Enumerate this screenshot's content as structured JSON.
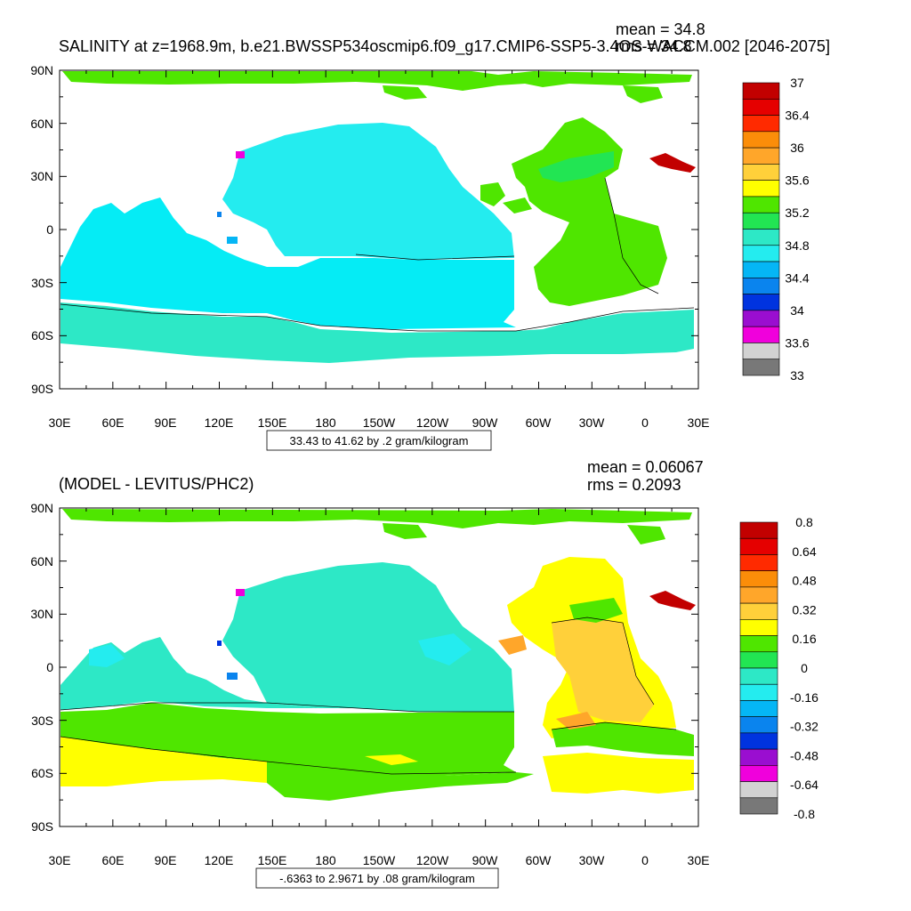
{
  "colors": {
    "land": "#ffffff",
    "frame": "#000000"
  },
  "icons": [
    "contour-line",
    "colorbar-swatch"
  ],
  "panels": [
    {
      "title": "SALINITY at z=1968.9m, b.e21.BWSSP534oscmip6.f09_g17.CMIP6-SSP5-3.4OS-WACCM.002 [2046-2075]",
      "stat_mean": "mean = 34.8",
      "stat_rms": "rms = 34.8",
      "range_label": "33.43 to 41.62 by .2 gram/kilogram",
      "x_ticks": [
        "30E",
        "60E",
        "90E",
        "120E",
        "150E",
        "180",
        "150W",
        "120W",
        "90W",
        "60W",
        "30W",
        "0",
        "30E"
      ],
      "y_ticks": [
        "90N",
        "60N",
        "30N",
        "0",
        "30S",
        "60S",
        "90S"
      ],
      "colorbar": {
        "colors": [
          "#c20000",
          "#e50000",
          "#ff2a00",
          "#fb8d09",
          "#ffa62a",
          "#ffd03a",
          "#ffff00",
          "#4fe600",
          "#22e553",
          "#2de8c6",
          "#24ecef",
          "#05b6f5",
          "#0a84ee",
          "#0033df",
          "#9a0ed0",
          "#f000dc",
          "#d2d2d2",
          "#787878"
        ],
        "labels": [
          "37",
          "36.4",
          "36",
          "35.6",
          "35.2",
          "34.8",
          "34.4",
          "34",
          "33.6",
          "33"
        ]
      }
    },
    {
      "title": "(MODEL - LEVITUS/PHC2)",
      "stat_mean": "mean = 0.06067",
      "stat_rms": "rms = 0.2093",
      "range_label": "-.6363 to 2.9671 by .08 gram/kilogram",
      "x_ticks": [
        "30E",
        "60E",
        "90E",
        "120E",
        "150E",
        "180",
        "150W",
        "120W",
        "90W",
        "60W",
        "30W",
        "0",
        "30E"
      ],
      "y_ticks": [
        "90N",
        "60N",
        "30N",
        "0",
        "30S",
        "60S",
        "90S"
      ],
      "colorbar": {
        "colors": [
          "#c20000",
          "#e50000",
          "#ff2a00",
          "#fb8d09",
          "#ffa62a",
          "#ffd03a",
          "#ffff00",
          "#4fe600",
          "#22e553",
          "#2de8c6",
          "#24ecef",
          "#05b6f5",
          "#0a84ee",
          "#0033df",
          "#9a0ed0",
          "#f000dc",
          "#d2d2d2",
          "#787878"
        ],
        "labels": [
          "0.8",
          "0.64",
          "0.48",
          "0.32",
          "0.16",
          "0",
          "-0.16",
          "-0.32",
          "-0.48",
          "-0.64",
          "-0.8"
        ]
      }
    }
  ]
}
